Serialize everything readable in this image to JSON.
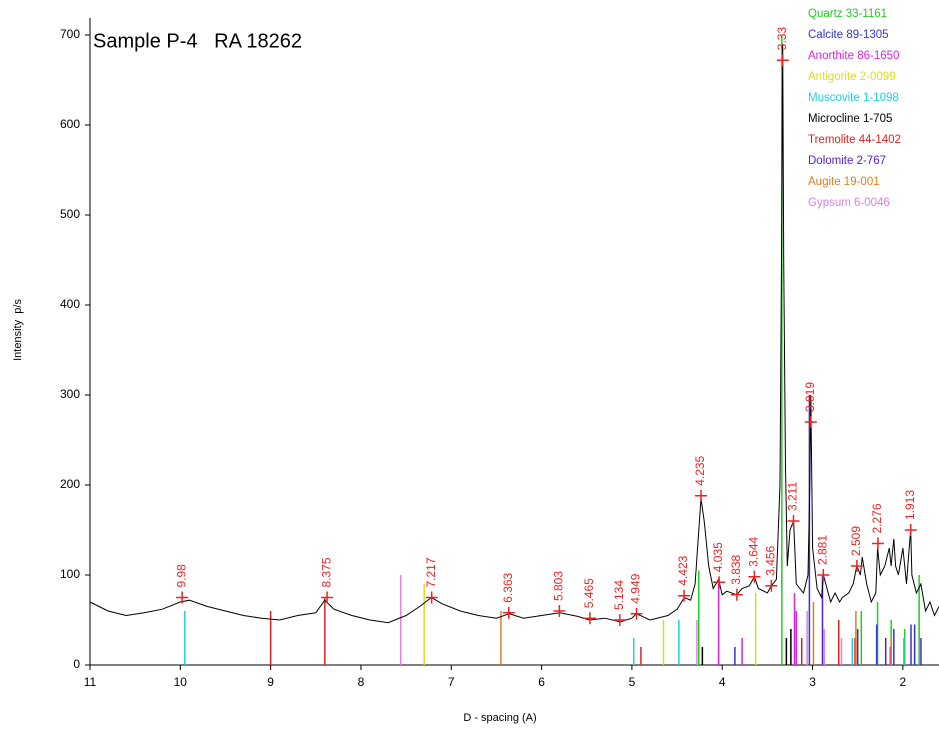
{
  "chart_data": {
    "type": "line",
    "title": "Sample P-4   RA 18262",
    "xlabel": "D - spacing (A)",
    "ylabel": "Intensity  p/s",
    "xlim": [
      11,
      1.6
    ],
    "ylim": [
      0,
      720
    ],
    "xticks": [
      11,
      10,
      9,
      8,
      7,
      6,
      5,
      4,
      3,
      2
    ],
    "yticks": [
      0,
      100,
      200,
      300,
      400,
      500,
      600,
      700
    ],
    "series": [
      {
        "color": "#000000",
        "x": [
          11,
          10.8,
          10.6,
          10.4,
          10.2,
          10.0,
          9.9,
          9.7,
          9.5,
          9.3,
          9.1,
          8.9,
          8.7,
          8.5,
          8.4,
          8.3,
          8.1,
          7.9,
          7.7,
          7.5,
          7.35,
          7.22,
          7.1,
          6.9,
          6.7,
          6.5,
          6.36,
          6.2,
          6.0,
          5.8,
          5.6,
          5.47,
          5.3,
          5.13,
          5.0,
          4.95,
          4.8,
          4.6,
          4.5,
          4.42,
          4.35,
          4.3,
          4.26,
          4.235,
          4.2,
          4.15,
          4.1,
          4.04,
          4.0,
          3.95,
          3.84,
          3.78,
          3.7,
          3.644,
          3.6,
          3.5,
          3.456,
          3.4,
          3.36,
          3.34,
          3.33,
          3.32,
          3.3,
          3.28,
          3.25,
          3.21,
          3.18,
          3.1,
          3.05,
          3.03,
          3.019,
          3.0,
          2.95,
          2.9,
          2.88,
          2.8,
          2.75,
          2.7,
          2.67,
          2.6,
          2.55,
          2.51,
          2.47,
          2.45,
          2.4,
          2.35,
          2.3,
          2.28,
          2.25,
          2.2,
          2.15,
          2.13,
          2.1,
          2.08,
          2.05,
          2.0,
          1.96,
          1.93,
          1.913,
          1.9,
          1.85,
          1.8,
          1.75,
          1.7,
          1.65,
          1.6
        ],
        "values": [
          70,
          60,
          55,
          58,
          62,
          70,
          72,
          65,
          60,
          55,
          52,
          50,
          55,
          58,
          72,
          62,
          55,
          50,
          47,
          55,
          65,
          75,
          68,
          60,
          55,
          52,
          57,
          52,
          55,
          58,
          54,
          50,
          52,
          48,
          52,
          57,
          50,
          55,
          62,
          75,
          72,
          90,
          150,
          185,
          160,
          110,
          85,
          95,
          78,
          82,
          78,
          85,
          88,
          98,
          85,
          80,
          88,
          95,
          200,
          500,
          690,
          450,
          220,
          110,
          150,
          160,
          90,
          80,
          100,
          200,
          300,
          130,
          85,
          75,
          100,
          70,
          80,
          70,
          75,
          80,
          90,
          110,
          100,
          120,
          90,
          70,
          80,
          130,
          100,
          110,
          130,
          110,
          140,
          110,
          100,
          130,
          90,
          130,
          150,
          100,
          80,
          90,
          60,
          70,
          55,
          65
        ]
      }
    ],
    "peaks": {
      "color": "#ee2222",
      "x": [
        9.98,
        8.375,
        7.217,
        6.363,
        5.803,
        5.465,
        5.134,
        4.949,
        4.423,
        4.235,
        4.035,
        3.838,
        3.644,
        3.456,
        3.33,
        3.211,
        3.019,
        2.881,
        2.509,
        2.276,
        1.913
      ],
      "values": [
        75,
        75,
        75,
        58,
        60,
        52,
        50,
        57,
        77,
        188,
        92,
        78,
        98,
        88,
        672,
        160,
        270,
        100,
        110,
        135,
        150
      ]
    },
    "references": [
      {
        "name": "Quartz 33-1161",
        "color": "#22cc22",
        "x": [
          4.26,
          3.34,
          2.46,
          2.28,
          2.13,
          1.98,
          1.82
        ],
        "values": [
          105,
          700,
          60,
          70,
          50,
          40,
          100
        ]
      },
      {
        "name": "Calcite 89-1305",
        "color": "#3333cc",
        "x": [
          3.86,
          3.035,
          2.5,
          2.29,
          2.1,
          1.91,
          1.87
        ],
        "values": [
          20,
          300,
          40,
          45,
          40,
          45,
          45
        ]
      },
      {
        "name": "Anorthite 86-1650",
        "color": "#e020e0",
        "x": [
          4.04,
          3.78,
          3.2,
          3.18,
          2.52,
          2.14
        ],
        "values": [
          90,
          30,
          80,
          60,
          30,
          20
        ]
      },
      {
        "name": "Antigorite 2-0099",
        "color": "#dddd20",
        "x": [
          7.3,
          4.65,
          3.63,
          2.52
        ],
        "values": [
          90,
          50,
          80,
          40
        ]
      },
      {
        "name": "Muscovite 1-1098",
        "color": "#20d0e0",
        "x": [
          9.95,
          4.98,
          4.48,
          2.56,
          1.99
        ],
        "values": [
          60,
          30,
          50,
          30,
          30
        ]
      },
      {
        "name": "Microcline 1-705",
        "color": "#000000",
        "x": [
          4.22,
          3.29,
          3.24
        ],
        "values": [
          20,
          30,
          40
        ]
      },
      {
        "name": "Tremolite 44-1402",
        "color": "#e02020",
        "x": [
          9.0,
          8.4,
          4.9,
          3.12,
          2.71,
          2.53
        ],
        "values": [
          60,
          75,
          20,
          30,
          50,
          30
        ]
      },
      {
        "name": "Dolomite 2-767",
        "color": "#5020d0",
        "x": [
          2.89,
          2.19,
          1.8
        ],
        "values": [
          100,
          30,
          30
        ]
      },
      {
        "name": "Augite 19-001",
        "color": "#e08020",
        "x": [
          6.45,
          2.99,
          2.52,
          2.13
        ],
        "values": [
          60,
          70,
          60,
          30
        ]
      },
      {
        "name": "Gypsum 6-0046",
        "color": "#e080e0",
        "x": [
          7.56,
          4.28,
          3.06,
          2.87,
          2.68
        ],
        "values": [
          100,
          50,
          60,
          40,
          30
        ]
      }
    ]
  }
}
